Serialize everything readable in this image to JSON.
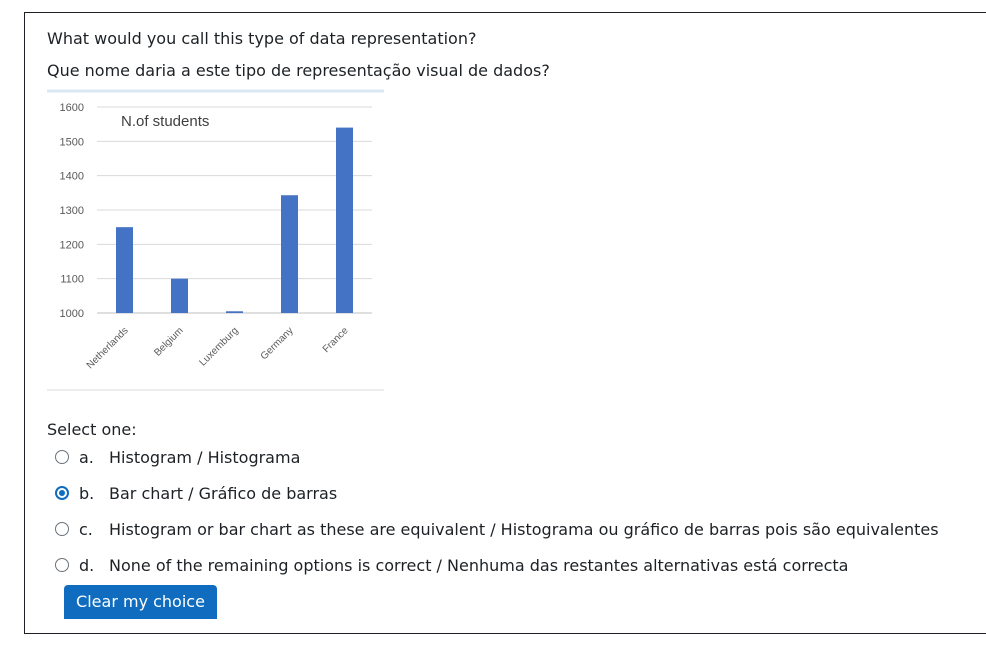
{
  "question": {
    "line1": "What would you call this type of data representation?",
    "line2": "Que nome daria a este tipo de representação visual de dados?"
  },
  "chart_data": {
    "type": "bar",
    "title": "N.of students",
    "categories": [
      "Netherlands",
      "Belgium",
      "Luxemburg",
      "Germany",
      "France"
    ],
    "values": [
      1250,
      1100,
      1005,
      1343,
      1540
    ],
    "ylim": [
      1000,
      1600
    ],
    "yticks": [
      1000,
      1100,
      1200,
      1300,
      1400,
      1500,
      1600
    ],
    "grid": true,
    "bar_color": "#4472c4",
    "xlabel": "",
    "ylabel": ""
  },
  "answer": {
    "select_label": "Select one:",
    "options": [
      {
        "letter": "a.",
        "text": "Histogram / Histograma",
        "checked": false
      },
      {
        "letter": "b.",
        "text": "Bar chart / Gráfico de barras",
        "checked": true
      },
      {
        "letter": "c.",
        "text": "Histogram or bar chart as these are equivalent / Histograma ou gráfico de barras pois são equivalentes",
        "checked": false
      },
      {
        "letter": "d.",
        "text": "None of the remaining options is correct / Nenhuma das restantes alternativas está correcta",
        "checked": false
      }
    ],
    "clear_label": "Clear my choice"
  },
  "colors": {
    "accent": "#0f6cbf",
    "text": "#1d2125"
  }
}
